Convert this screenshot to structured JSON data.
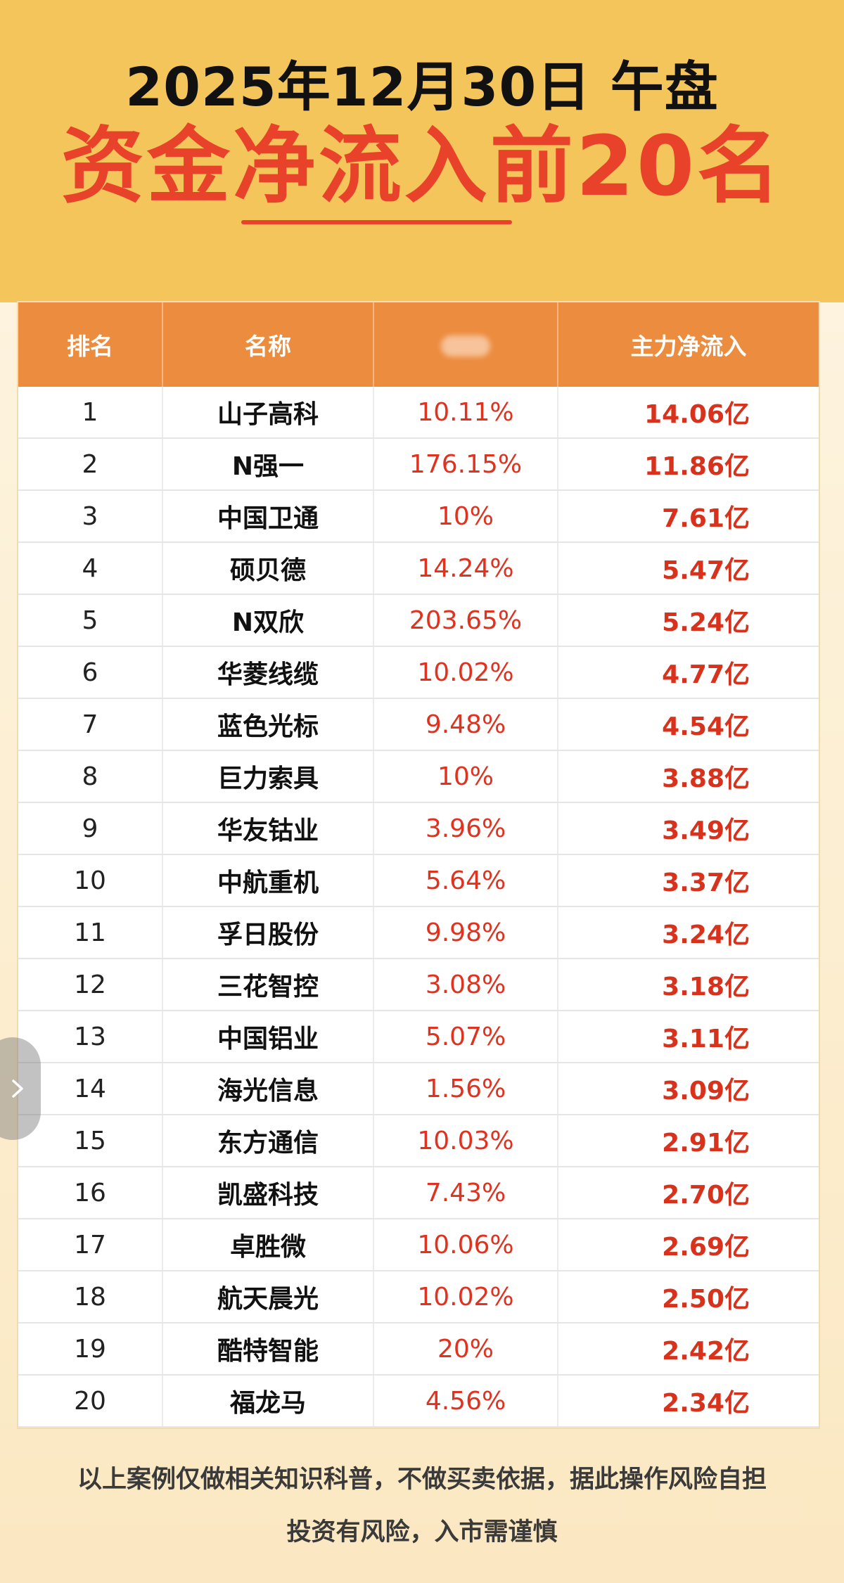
{
  "header": {
    "date_line": "2025年12月30日 午盘",
    "title": "资金净流入前20名"
  },
  "table": {
    "columns": [
      "排名",
      "名称",
      "",
      "主力净流入"
    ],
    "rows": [
      {
        "rank": "1",
        "name": "山子高科",
        "pct": "10.11%",
        "flow": "14.06亿"
      },
      {
        "rank": "2",
        "name": "N强一",
        "pct": "176.15%",
        "flow": "11.86亿"
      },
      {
        "rank": "3",
        "name": "中国卫通",
        "pct": "10%",
        "flow": "7.61亿"
      },
      {
        "rank": "4",
        "name": "硕贝德",
        "pct": "14.24%",
        "flow": "5.47亿"
      },
      {
        "rank": "5",
        "name": "N双欣",
        "pct": "203.65%",
        "flow": "5.24亿"
      },
      {
        "rank": "6",
        "name": "华菱线缆",
        "pct": "10.02%",
        "flow": "4.77亿"
      },
      {
        "rank": "7",
        "name": "蓝色光标",
        "pct": "9.48%",
        "flow": "4.54亿"
      },
      {
        "rank": "8",
        "name": "巨力索具",
        "pct": "10%",
        "flow": "3.88亿"
      },
      {
        "rank": "9",
        "name": "华友钴业",
        "pct": "3.96%",
        "flow": "3.49亿"
      },
      {
        "rank": "10",
        "name": "中航重机",
        "pct": "5.64%",
        "flow": "3.37亿"
      },
      {
        "rank": "11",
        "name": "孚日股份",
        "pct": "9.98%",
        "flow": "3.24亿"
      },
      {
        "rank": "12",
        "name": "三花智控",
        "pct": "3.08%",
        "flow": "3.18亿"
      },
      {
        "rank": "13",
        "name": "中国铝业",
        "pct": "5.07%",
        "flow": "3.11亿"
      },
      {
        "rank": "14",
        "name": "海光信息",
        "pct": "1.56%",
        "flow": "3.09亿"
      },
      {
        "rank": "15",
        "name": "东方通信",
        "pct": "10.03%",
        "flow": "2.91亿"
      },
      {
        "rank": "16",
        "name": "凯盛科技",
        "pct": "7.43%",
        "flow": "2.70亿"
      },
      {
        "rank": "17",
        "name": "卓胜微",
        "pct": "10.06%",
        "flow": "2.69亿"
      },
      {
        "rank": "18",
        "name": "航天晨光",
        "pct": "10.02%",
        "flow": "2.50亿"
      },
      {
        "rank": "19",
        "name": "酷特智能",
        "pct": "20%",
        "flow": "2.42亿"
      },
      {
        "rank": "20",
        "name": "福龙马",
        "pct": "4.56%",
        "flow": "2.34亿"
      }
    ]
  },
  "footer": {
    "line1": "以上案例仅做相关知识科普，不做买卖依据，据此操作风险自担",
    "line2": "投资有风险，入市需谨慎"
  },
  "colors": {
    "header_bg": "#f4c55a",
    "title_red": "#e8432a",
    "table_header_orange": "#ec8c3f",
    "value_red": "#e0321f"
  },
  "icons": {
    "side_nav": "chevron-right-icon"
  }
}
